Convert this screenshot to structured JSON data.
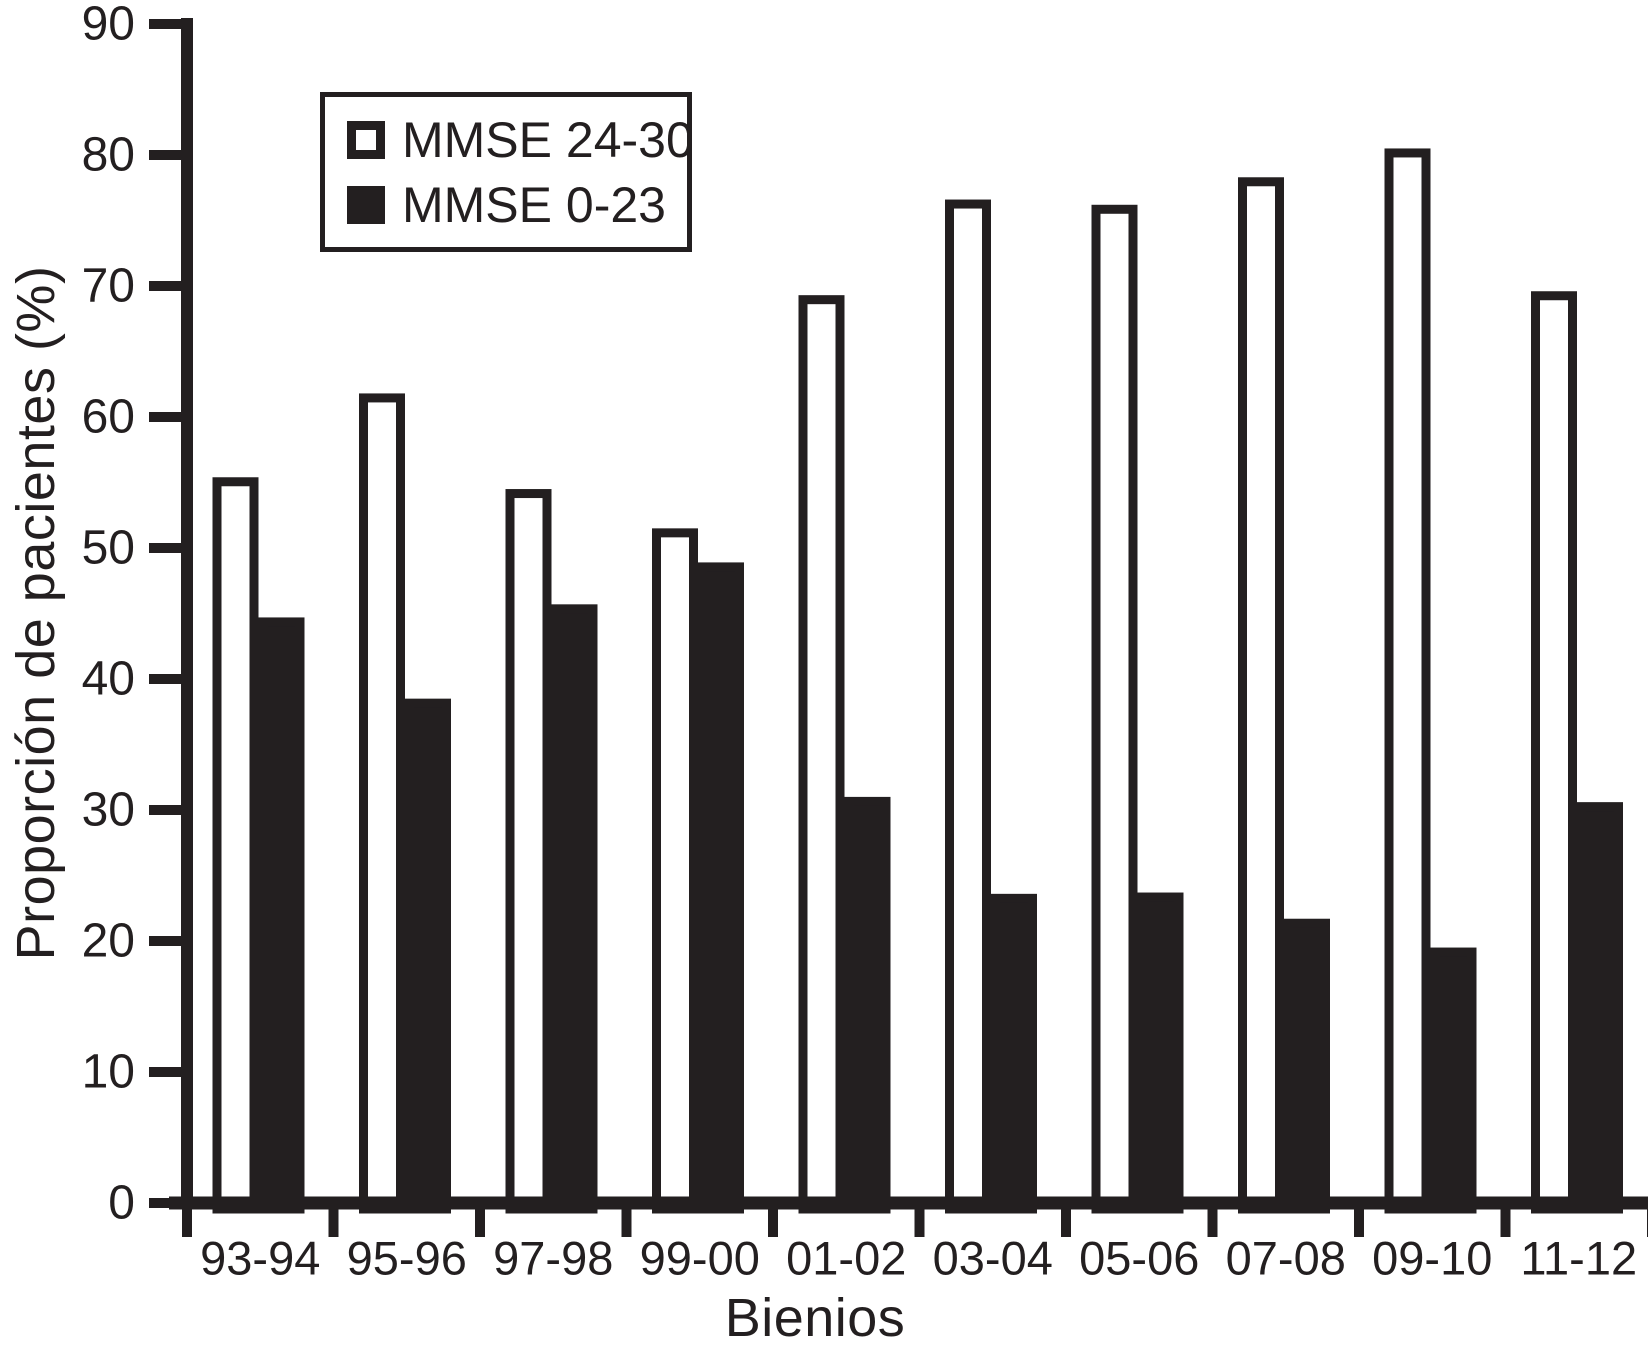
{
  "chart_data": {
    "type": "bar",
    "title": "",
    "xlabel": "Bienios",
    "ylabel": "Proporción de pacientes (%)",
    "categories": [
      "93-94",
      "95-96",
      "97-98",
      "99-00",
      "01-02",
      "03-04",
      "05-06",
      "07-08",
      "09-10",
      "11-12"
    ],
    "series": [
      {
        "name": "MMSE 24-30",
        "style": "open",
        "fill": "#ffffff",
        "stroke": "#231f20",
        "values": [
          55.4,
          61.8,
          54.5,
          51.5,
          69.3,
          76.6,
          76.2,
          78.3,
          80.5,
          69.6
        ]
      },
      {
        "name": "MMSE 0-23",
        "style": "filled",
        "fill": "#231f20",
        "stroke": "#231f20",
        "values": [
          44.7,
          38.5,
          45.7,
          48.9,
          31.0,
          23.6,
          23.7,
          21.7,
          19.5,
          30.6
        ]
      }
    ],
    "ylim": [
      0,
      90
    ],
    "ytick_step": 10,
    "grid": "off",
    "legend_position": "upper-left",
    "ink_color": "#231f20",
    "background_color": "#ffffff"
  }
}
